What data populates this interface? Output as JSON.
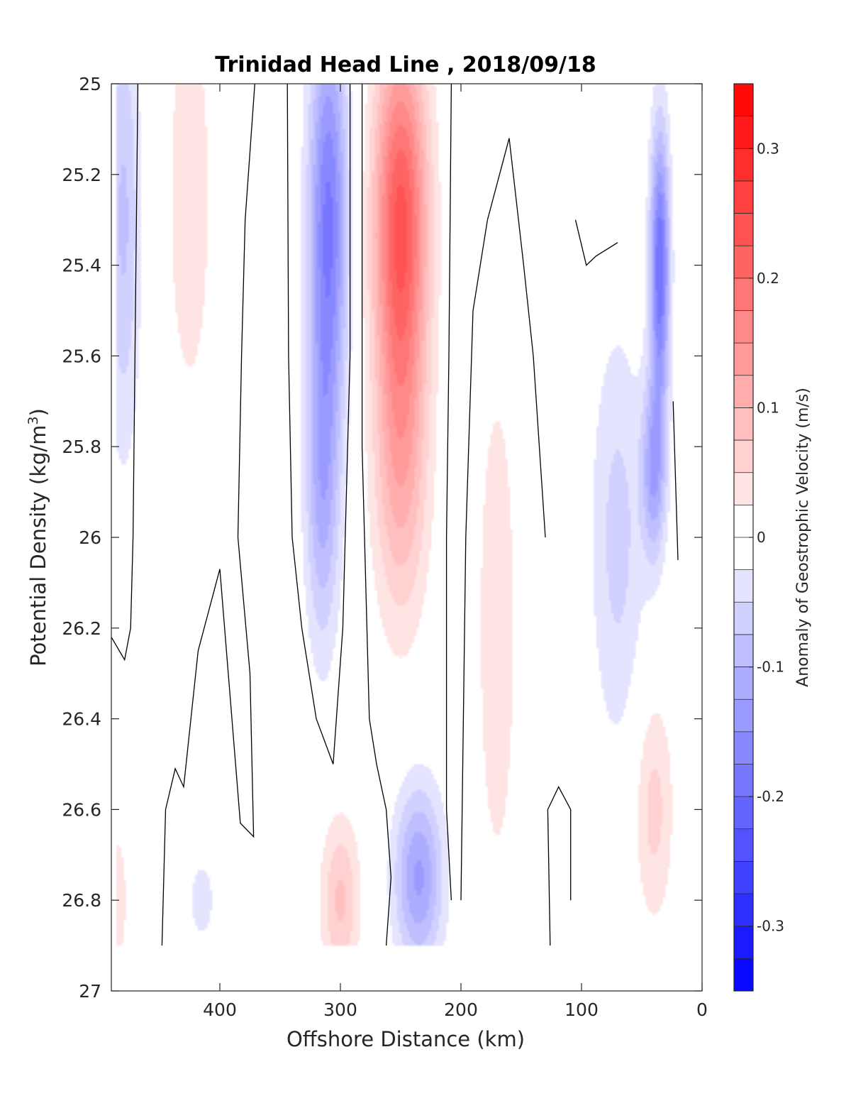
{
  "chart_data": {
    "type": "heatmap",
    "title": "Trinidad Head Line , 2018/09/18",
    "xlabel": "Offshore Distance (km)",
    "ylabel_prefix": "Potential Density (kg/m",
    "ylabel_sup": "3",
    "ylabel_suffix": ")",
    "colorbar_label": "Anomaly of Geostrophic Velocity (m/s)",
    "x_axis": {
      "range": [
        490,
        0
      ],
      "reversed": true,
      "ticks": [
        400,
        300,
        200,
        100,
        0
      ]
    },
    "y_axis": {
      "range": [
        25,
        27
      ],
      "reversed": true,
      "ticks": [
        "25",
        "25.2",
        "25.4",
        "25.6",
        "25.8",
        "26",
        "26.2",
        "26.4",
        "26.6",
        "26.8",
        "27"
      ]
    },
    "colorbar": {
      "range": [
        -0.35,
        0.35
      ],
      "levels": 28,
      "ticks": [
        "-0.3",
        "-0.2",
        "-0.1",
        "0",
        "0.1",
        "0.2",
        "0.3"
      ],
      "positive_color": "#ff0000",
      "negative_color": "#0000ff",
      "zero_color": "#ffffff"
    },
    "data_coverage": {
      "x_max_km": 485,
      "x_min_km": 15,
      "density_max": 26.9
    },
    "features": [
      {
        "x": 480,
        "y": 25.3,
        "v": -0.08,
        "sx": 14,
        "sy": 0.5
      },
      {
        "x": 425,
        "y": 25.25,
        "v": 0.05,
        "sx": 18,
        "sy": 0.45
      },
      {
        "x": 310,
        "y": 25.3,
        "v": -0.18,
        "sx": 16,
        "sy": 0.45
      },
      {
        "x": 315,
        "y": 25.9,
        "v": -0.1,
        "sx": 14,
        "sy": 0.35
      },
      {
        "x": 250,
        "y": 25.3,
        "v": 0.23,
        "sx": 22,
        "sy": 0.4
      },
      {
        "x": 250,
        "y": 25.85,
        "v": 0.1,
        "sx": 22,
        "sy": 0.35
      },
      {
        "x": 170,
        "y": 26.2,
        "v": 0.05,
        "sx": 16,
        "sy": 0.55
      },
      {
        "x": 235,
        "y": 26.75,
        "v": -0.13,
        "sx": 20,
        "sy": 0.2
      },
      {
        "x": 300,
        "y": 26.8,
        "v": 0.08,
        "sx": 16,
        "sy": 0.18
      },
      {
        "x": 70,
        "y": 26.0,
        "v": -0.06,
        "sx": 22,
        "sy": 0.45
      },
      {
        "x": 35,
        "y": 25.4,
        "v": -0.2,
        "sx": 8,
        "sy": 0.3
      },
      {
        "x": 40,
        "y": 25.85,
        "v": -0.12,
        "sx": 10,
        "sy": 0.2
      },
      {
        "x": 40,
        "y": 26.6,
        "v": 0.06,
        "sx": 16,
        "sy": 0.25
      },
      {
        "x": 415,
        "y": 26.8,
        "v": -0.04,
        "sx": 12,
        "sy": 0.1
      },
      {
        "x": 485,
        "y": 26.8,
        "v": 0.05,
        "sx": 8,
        "sy": 0.15
      }
    ],
    "zero_contours": [
      [
        [
          468,
          25
        ],
        [
          470,
          25.5
        ],
        [
          472,
          26.0
        ],
        [
          474,
          26.2
        ],
        [
          479,
          26.27
        ],
        [
          490,
          26.22
        ]
      ],
      [
        [
          371,
          25
        ],
        [
          379,
          25.3
        ],
        [
          382,
          25.6
        ],
        [
          385,
          26.0
        ],
        [
          375,
          26.3
        ],
        [
          372,
          26.66
        ],
        [
          383,
          26.63
        ],
        [
          400,
          26.07
        ],
        [
          418,
          26.25
        ],
        [
          430,
          26.55
        ],
        [
          437,
          26.51
        ],
        [
          445,
          26.6
        ],
        [
          448,
          26.9
        ]
      ],
      [
        [
          344,
          25
        ],
        [
          343,
          25.6
        ],
        [
          340,
          26.0
        ],
        [
          332,
          26.2
        ],
        [
          320,
          26.4
        ],
        [
          306,
          26.5
        ],
        [
          298,
          26.2
        ],
        [
          292,
          25.6
        ],
        [
          292,
          25
        ]
      ],
      [
        [
          282,
          25
        ],
        [
          282,
          25.8
        ],
        [
          280,
          26.0
        ],
        [
          276,
          26.4
        ],
        [
          270,
          26.5
        ],
        [
          262,
          26.6
        ],
        [
          258,
          26.75
        ],
        [
          262,
          26.9
        ]
      ],
      [
        [
          208,
          25
        ],
        [
          210,
          25.6
        ],
        [
          212,
          26.0
        ],
        [
          212,
          26.6
        ],
        [
          208,
          26.8
        ]
      ],
      [
        [
          200,
          26.8
        ],
        [
          196,
          26.0
        ],
        [
          190,
          25.5
        ],
        [
          178,
          25.3
        ],
        [
          160,
          25.12
        ],
        [
          148,
          25.4
        ],
        [
          140,
          25.6
        ],
        [
          135,
          25.8
        ],
        [
          130,
          26.0
        ]
      ],
      [
        [
          126,
          26.9
        ],
        [
          128,
          26.6
        ],
        [
          119,
          26.55
        ],
        [
          109,
          26.6
        ],
        [
          109,
          26.8
        ]
      ],
      [
        [
          105,
          25.3
        ],
        [
          96,
          25.4
        ],
        [
          88,
          25.38
        ],
        [
          70,
          25.35
        ]
      ],
      [
        [
          24,
          25.7
        ],
        [
          20,
          26.05
        ]
      ]
    ]
  }
}
